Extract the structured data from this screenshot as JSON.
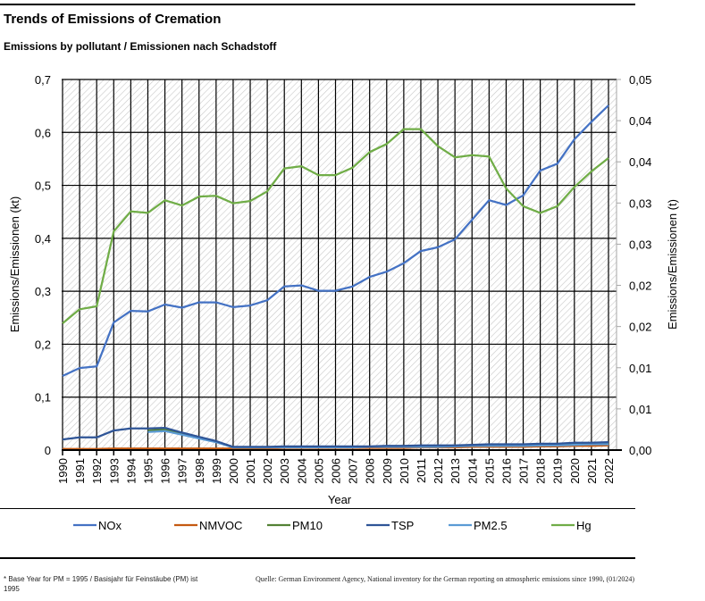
{
  "header": {
    "title": "Trends of Emissions of Cremation",
    "subtitle": "Emissions by pollutant / Emissionen nach Schadstoff"
  },
  "chart_data": {
    "type": "line",
    "title": "Trends of Emissions of Cremation",
    "subtitle": "Emissions by pollutant / Emissionen nach Schadstoff",
    "xlabel": "Year",
    "ylabel": "Emissions/Emissionen (kt)",
    "ylabel_right": "Emissions/Emissionen (t)",
    "ylim": [
      0,
      0.7
    ],
    "ylim_right": [
      0,
      0.05
    ],
    "yticks": [
      "0",
      "0,1",
      "0,2",
      "0,3",
      "0,4",
      "0,5",
      "0,6",
      "0,7"
    ],
    "yticks_right": [
      "0,00",
      "0,01",
      "0,01",
      "0,02",
      "0,02",
      "0,03",
      "0,03",
      "0,04",
      "0,04",
      "0,05"
    ],
    "grid": true,
    "legend_position": "bottom",
    "x": [
      1990,
      1991,
      1992,
      1993,
      1994,
      1995,
      1996,
      1997,
      1998,
      1999,
      2000,
      2001,
      2002,
      2003,
      2004,
      2005,
      2006,
      2007,
      2008,
      2009,
      2010,
      2011,
      2012,
      2013,
      2014,
      2015,
      2016,
      2017,
      2018,
      2019,
      2020,
      2021,
      2022
    ],
    "series": [
      {
        "name": "NOx",
        "axis": "left",
        "color": "#4472C4",
        "values": [
          0.14,
          0.155,
          0.158,
          0.241,
          0.263,
          0.262,
          0.275,
          0.269,
          0.279,
          0.279,
          0.27,
          0.273,
          0.283,
          0.309,
          0.311,
          0.301,
          0.301,
          0.309,
          0.327,
          0.337,
          0.353,
          0.376,
          0.383,
          0.398,
          0.435,
          0.472,
          0.463,
          0.481,
          0.528,
          0.541,
          0.587,
          0.62,
          0.651
        ]
      },
      {
        "name": "NMVOC",
        "axis": "left",
        "color": "#C55A11",
        "values": [
          0.002,
          0.002,
          0.002,
          0.003,
          0.003,
          0.003,
          0.003,
          0.003,
          0.003,
          0.003,
          0.003,
          0.003,
          0.003,
          0.004,
          0.004,
          0.004,
          0.004,
          0.004,
          0.004,
          0.004,
          0.004,
          0.005,
          0.005,
          0.005,
          0.006,
          0.006,
          0.006,
          0.006,
          0.007,
          0.007,
          0.008,
          0.008,
          0.009
        ]
      },
      {
        "name": "PM10",
        "axis": "left",
        "color": "#548235",
        "values": [
          null,
          null,
          null,
          null,
          null,
          0.037,
          0.039,
          0.031,
          0.024,
          0.016,
          0.005,
          0.005,
          0.005,
          0.006,
          0.006,
          0.006,
          0.006,
          0.006,
          0.006,
          0.007,
          0.007,
          0.007,
          0.007,
          0.008,
          0.009,
          0.009,
          0.009,
          0.009,
          0.01,
          0.01,
          0.012,
          0.012,
          0.013
        ]
      },
      {
        "name": "TSP",
        "axis": "left",
        "color": "#2F5597",
        "values": [
          0.02,
          0.024,
          0.024,
          0.037,
          0.041,
          0.041,
          0.042,
          0.033,
          0.025,
          0.017,
          0.006,
          0.006,
          0.006,
          0.007,
          0.007,
          0.007,
          0.007,
          0.007,
          0.007,
          0.008,
          0.008,
          0.009,
          0.009,
          0.009,
          0.01,
          0.011,
          0.011,
          0.011,
          0.012,
          0.012,
          0.014,
          0.014,
          0.015
        ]
      },
      {
        "name": "PM2.5",
        "axis": "left",
        "color": "#5B9BD5",
        "values": [
          null,
          null,
          null,
          null,
          null,
          0.034,
          0.036,
          0.029,
          0.022,
          0.015,
          0.005,
          0.005,
          0.005,
          0.005,
          0.005,
          0.005,
          0.005,
          0.005,
          0.006,
          0.006,
          0.006,
          0.006,
          0.006,
          0.007,
          0.008,
          0.008,
          0.008,
          0.008,
          0.009,
          0.009,
          0.01,
          0.011,
          0.011
        ]
      },
      {
        "name": "Hg",
        "axis": "right",
        "color": "#70AD47",
        "values": [
          0.0171,
          0.019,
          0.0194,
          0.0295,
          0.0322,
          0.032,
          0.0337,
          0.033,
          0.0342,
          0.0343,
          0.0333,
          0.0336,
          0.0349,
          0.038,
          0.0383,
          0.0371,
          0.0371,
          0.0381,
          0.0402,
          0.0413,
          0.0433,
          0.0433,
          0.041,
          0.0395,
          0.0398,
          0.0396,
          0.0353,
          0.0329,
          0.032,
          0.0329,
          0.0355,
          0.0376,
          0.0394
        ]
      }
    ]
  },
  "footer": {
    "note": "* Base Year for PM = 1995 / Basisjahr für Feinstäube (PM) ist 1995",
    "source": "Quelle: German Environment Agency, National inventory for the German reporting on atmospheric emissions since 1990, (01/2024)"
  }
}
